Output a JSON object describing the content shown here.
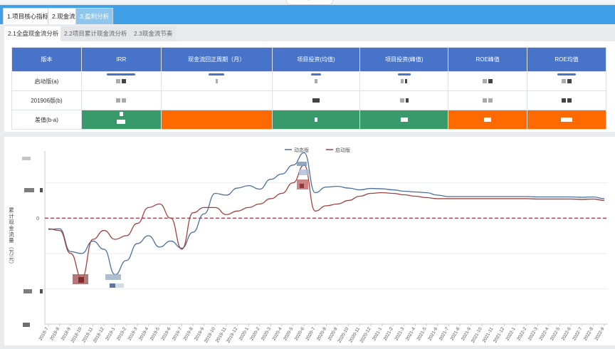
{
  "tabs": [
    {
      "label": "1.项目核心指标"
    },
    {
      "label": "2.现金流"
    },
    {
      "label": "3.盈利分析"
    }
  ],
  "subtabs": [
    {
      "label": "2.1全盘现金流分析"
    },
    {
      "label": "2.2项目累计现金流分析"
    },
    {
      "label": "2.3现金流节奏"
    }
  ],
  "table": {
    "headers": [
      "版本",
      "IRR",
      "现金流回正周期（月）",
      "项目投资(均值)",
      "项目投资(峰值)",
      "ROE峰值",
      "ROE均值"
    ],
    "rows": [
      {
        "label": "启动版(a)"
      },
      {
        "label": "201906版(b)"
      },
      {
        "label": "差值(b-a)"
      }
    ],
    "colors": {
      "header": "#4774c9",
      "green": "#38996a",
      "orange": "#ff6a00"
    }
  },
  "chart_data": {
    "type": "line",
    "ylabel": "累计现金流量（万元）",
    "zero_label": "0",
    "legend_position": "top-center",
    "x": [
      "2018-7",
      "2018-8",
      "2018-9",
      "2018-10",
      "2018-11",
      "2018-12",
      "2019-1",
      "2019-2",
      "2019-3",
      "2019-4",
      "2019-5",
      "2019-6",
      "2019-7",
      "2019-8",
      "2019-9",
      "2019-10",
      "2019-11",
      "2019-12",
      "2020-1",
      "2020-2",
      "2020-3",
      "2020-4",
      "2020-5",
      "2020-6",
      "2020-7",
      "2020-8",
      "2020-9",
      "2020-10",
      "2020-11",
      "2020-12",
      "2021-1",
      "2021-2",
      "2021-3",
      "2021-4",
      "2021-5",
      "2021-6",
      "2021-7",
      "2021-8",
      "2021-9",
      "2021-10",
      "2021-11",
      "2021-12",
      "2022-1",
      "2022-2",
      "2022-3",
      "2022-4",
      "2022-5",
      "2022-6",
      "2022-7",
      "2022-8",
      "2022-9"
    ],
    "series": [
      {
        "name": "动态版",
        "color": "#4a6f9c",
        "values": [
          -0.32,
          -0.3,
          -0.95,
          -1.0,
          -0.65,
          -0.88,
          -1.6,
          -1.2,
          -0.72,
          -0.5,
          -0.82,
          -0.65,
          -0.85,
          -0.4,
          0.12,
          0.7,
          0.65,
          0.85,
          0.92,
          0.82,
          1.1,
          1.25,
          1.5,
          1.85,
          0.72,
          0.88,
          0.9,
          0.85,
          0.8,
          0.84,
          0.83,
          0.8,
          0.76,
          0.74,
          0.72,
          0.65,
          0.61,
          0.61,
          0.61,
          0.61,
          0.61,
          0.61,
          0.61,
          0.61,
          0.6,
          0.6,
          0.6,
          0.6,
          0.59,
          0.6,
          0.55
        ]
      },
      {
        "name": "启动版",
        "color": "#a3413f",
        "values": [
          -0.3,
          -0.35,
          -1.0,
          -1.7,
          -0.6,
          -0.35,
          -0.6,
          -0.5,
          -0.15,
          0.3,
          0.4,
          0.0,
          -0.88,
          0.15,
          0.3,
          0.3,
          0.1,
          0.2,
          0.3,
          0.4,
          0.55,
          0.7,
          1.0,
          1.5,
          0.2,
          0.35,
          0.4,
          0.5,
          0.62,
          0.7,
          0.72,
          0.7,
          0.66,
          0.62,
          0.58,
          0.55,
          0.55,
          0.55,
          0.55,
          0.55,
          0.55,
          0.55,
          0.55,
          0.55,
          0.54,
          0.54,
          0.54,
          0.54,
          0.53,
          0.54,
          0.5
        ]
      }
    ],
    "ylim": [
      -3.0,
      1.9
    ]
  }
}
